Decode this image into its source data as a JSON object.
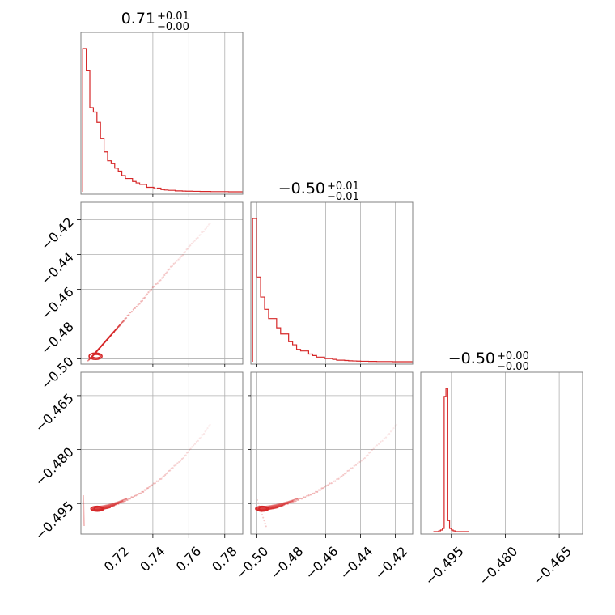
{
  "chart_data": {
    "type": "corner",
    "color": "#d62728",
    "parameters": [
      {
        "title": {
          "main": "0.71",
          "plus": "+0.01",
          "minus": "−0.00"
        },
        "range": [
          0.7,
          0.79
        ],
        "ticks": [
          "0.72",
          "0.74",
          "0.76",
          "0.78"
        ],
        "tick_values": [
          0.72,
          0.74,
          0.76,
          0.78
        ],
        "hist_edges_range": [
          0.701,
          0.79
        ],
        "hist_counts": [
          0.97,
          0.82,
          0.57,
          0.54,
          0.47,
          0.36,
          0.27,
          0.21,
          0.19,
          0.16,
          0.14,
          0.11,
          0.09,
          0.09,
          0.07,
          0.06,
          0.05,
          0.05,
          0.03,
          0.03,
          0.02,
          0.025,
          0.015,
          0.012,
          0.01,
          0.01,
          0.006,
          0.006,
          0.005,
          0.004,
          0.004,
          0.003,
          0.003,
          0.002,
          0.002,
          0.002,
          0.001,
          0.001,
          0.001,
          0.001,
          0.001,
          0,
          0,
          0,
          0
        ]
      },
      {
        "title": {
          "main": "−0.50",
          "plus": "+0.01",
          "minus": "−0.01"
        },
        "range": [
          -0.503,
          -0.41
        ],
        "ticks": [
          "−0.50",
          "−0.48",
          "−0.46",
          "−0.44",
          "−0.42"
        ],
        "tick_values": [
          -0.5,
          -0.48,
          -0.46,
          -0.44,
          -0.42
        ],
        "y_ticks": [
          "−0.42",
          "−0.44",
          "−0.46",
          "−0.48",
          "−0.50"
        ],
        "hist_edges_range": [
          -0.502,
          -0.41
        ],
        "hist_counts": [
          0.93,
          0.55,
          0.42,
          0.34,
          0.28,
          0.28,
          0.22,
          0.18,
          0.18,
          0.13,
          0.11,
          0.08,
          0.07,
          0.07,
          0.05,
          0.04,
          0.03,
          0.03,
          0.02,
          0.02,
          0.015,
          0.01,
          0.01,
          0.008,
          0.006,
          0.005,
          0.004,
          0.003,
          0.003,
          0.002,
          0.002,
          0.001,
          0.001,
          0.001,
          0.001,
          0,
          0,
          0,
          0,
          0
        ]
      },
      {
        "title": {
          "main": "−0.50",
          "plus": "+0.00",
          "minus": "−0.00"
        },
        "range": [
          -0.5035,
          -0.4585
        ],
        "ticks": [
          "−0.495",
          "−0.480",
          "−0.465"
        ],
        "tick_values": [
          -0.495,
          -0.48,
          -0.465
        ],
        "y_ticks": [
          "−0.465",
          "−0.480",
          "−0.495"
        ],
        "hist_edges_range": [
          -0.5,
          -0.49
        ],
        "hist_counts": [
          0,
          0,
          0,
          0.005,
          0.01,
          0.02,
          0.85,
          0.9,
          0.07,
          0.02,
          0.01,
          0.005,
          0,
          0,
          0,
          0,
          0,
          0,
          0,
          0
        ]
      }
    ],
    "grid": true
  }
}
